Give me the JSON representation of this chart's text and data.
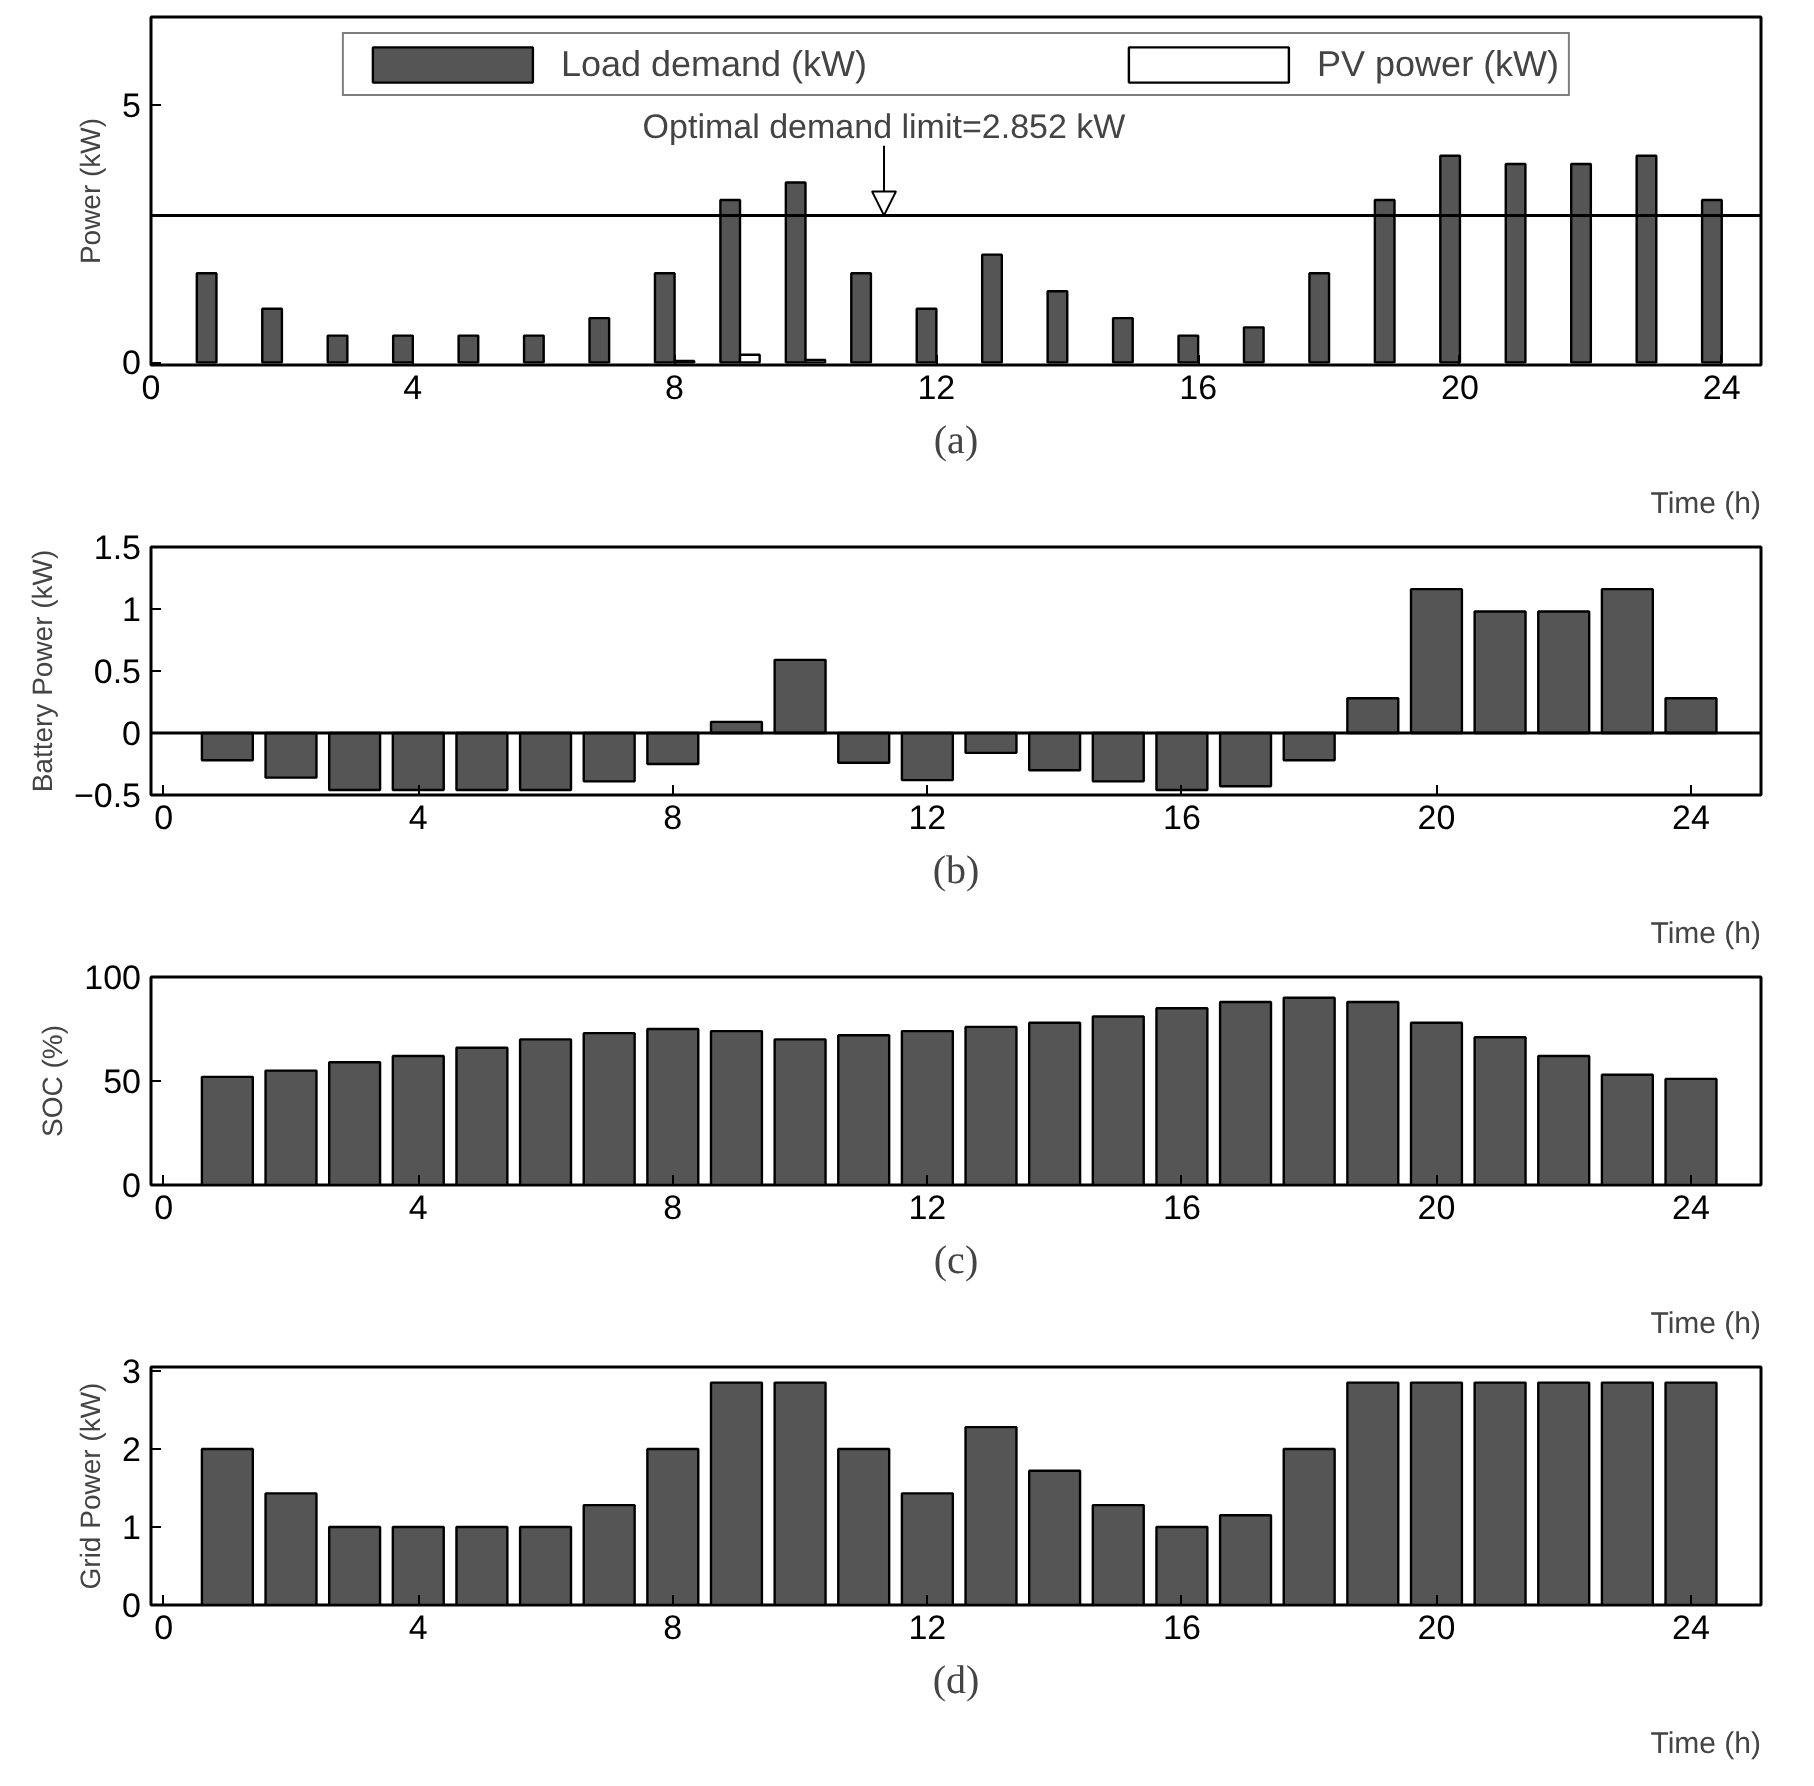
{
  "chart_data": [
    {
      "type": "bar",
      "x": [
        1,
        2,
        3,
        4,
        5,
        6,
        7,
        8,
        9,
        10,
        11,
        12,
        13,
        14,
        15,
        16,
        17,
        18,
        19,
        20,
        21,
        22,
        23,
        24
      ],
      "ylabel": "Power (kW)",
      "xlabel": "Time (h)",
      "series": [
        {
          "name": "Load demand (kW)",
          "color": "#555555",
          "values": [
            1.73,
            1.04,
            0.52,
            0.52,
            0.52,
            0.52,
            0.86,
            1.73,
            3.15,
            3.49,
            1.73,
            1.04,
            2.09,
            1.38,
            0.86,
            0.52,
            0.68,
            1.73,
            3.15,
            4.01,
            3.85,
            3.85,
            4.01,
            3.15
          ]
        },
        {
          "name": "PV power (kW)",
          "color": "#ffffff",
          "values": [
            null,
            null,
            null,
            null,
            null,
            null,
            null,
            0.03,
            0.15,
            0.05,
            null,
            null,
            null,
            null,
            null,
            null,
            null,
            null,
            null,
            null,
            null,
            null,
            null,
            null
          ]
        }
      ],
      "xlim": [
        0,
        24.6
      ],
      "xticks": [
        0,
        4,
        8,
        12,
        16,
        20,
        24
      ],
      "ylim": [
        -0.05,
        6.7
      ],
      "yticks": [
        0,
        5
      ],
      "grid": false,
      "legend": "top",
      "ref_lines": [
        {
          "axis": "y",
          "value": 2.852
        }
      ],
      "annotations": [
        {
          "text": "Optimal demand limit=2.852 kW",
          "x": 11.2,
          "y": 2.852
        },
        "(a)"
      ]
    },
    {
      "type": "bar",
      "x": [
        1,
        2,
        3,
        4,
        5,
        6,
        7,
        8,
        9,
        10,
        11,
        12,
        13,
        14,
        15,
        16,
        17,
        18,
        19,
        20,
        21,
        22,
        23,
        24
      ],
      "ylabel": "Battery Power (kW)",
      "xlabel": "Time (h)",
      "color": "#555555",
      "values": [
        -0.22,
        -0.36,
        -0.46,
        -0.46,
        -0.46,
        -0.46,
        -0.39,
        -0.25,
        0.09,
        0.59,
        -0.24,
        -0.38,
        -0.16,
        -0.3,
        -0.39,
        -0.46,
        -0.43,
        -0.22,
        0.28,
        1.16,
        0.98,
        0.98,
        1.16,
        0.28
      ],
      "xlim": [
        -0.2,
        25.1
      ],
      "xticks": [
        0,
        4,
        8,
        12,
        16,
        20,
        24
      ],
      "ylim": [
        -0.5,
        1.5
      ],
      "yticks": [
        -0.5,
        0,
        0.5,
        1,
        1.5
      ],
      "grid": false,
      "ref_lines": [
        {
          "axis": "y",
          "value": 0
        }
      ],
      "annotations": [
        "(b)"
      ]
    },
    {
      "type": "bar",
      "x": [
        1,
        2,
        3,
        4,
        5,
        6,
        7,
        8,
        9,
        10,
        11,
        12,
        13,
        14,
        15,
        16,
        17,
        18,
        19,
        20,
        21,
        22,
        23,
        24
      ],
      "ylabel": "SOC (%)",
      "xlabel": "Time (h)",
      "color": "#555555",
      "values": [
        52,
        55,
        59,
        62,
        66,
        70,
        73,
        75,
        74,
        70,
        72,
        74,
        76,
        78,
        81,
        85,
        88,
        90,
        88,
        78,
        71,
        62,
        53,
        51
      ],
      "xlim": [
        -0.2,
        25.1
      ],
      "xticks": [
        0,
        4,
        8,
        12,
        16,
        20,
        24
      ],
      "ylim": [
        0,
        100
      ],
      "yticks": [
        0,
        50,
        100
      ],
      "grid": false,
      "annotations": [
        "(c)"
      ]
    },
    {
      "type": "bar",
      "x": [
        1,
        2,
        3,
        4,
        5,
        6,
        7,
        8,
        9,
        10,
        11,
        12,
        13,
        14,
        15,
        16,
        17,
        18,
        19,
        20,
        21,
        22,
        23,
        24
      ],
      "ylabel": "Grid Power (kW)",
      "xlabel": "Time (h)",
      "color": "#555555",
      "values": [
        2.0,
        1.43,
        1.0,
        1.0,
        1.0,
        1.0,
        1.28,
        2.0,
        2.85,
        2.85,
        2.0,
        1.43,
        2.28,
        1.72,
        1.28,
        1.0,
        1.15,
        2.0,
        2.85,
        2.85,
        2.85,
        2.85,
        2.85,
        2.85
      ],
      "xlim": [
        -0.2,
        25.1
      ],
      "xticks": [
        0,
        4,
        8,
        12,
        16,
        20,
        24
      ],
      "ylim": [
        0,
        3.05
      ],
      "yticks": [
        0,
        1,
        2,
        3
      ],
      "grid": false,
      "annotations": [
        "(d)"
      ]
    }
  ]
}
